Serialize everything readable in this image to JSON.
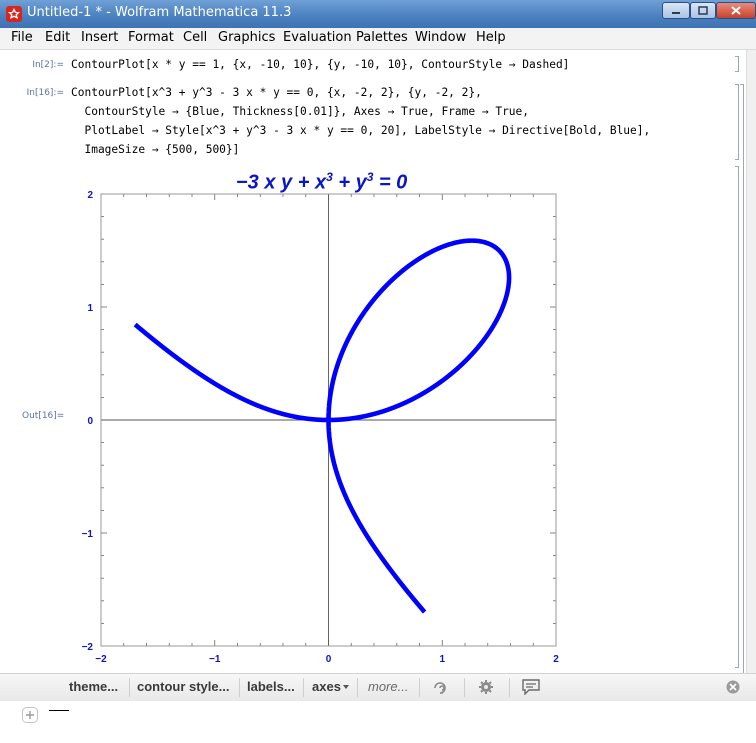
{
  "window": {
    "title": "Untitled-1 * - Wolfram Mathematica 11.3",
    "icon": "mathematica-spikey-icon"
  },
  "menu": [
    "File",
    "Edit",
    "Insert",
    "Format",
    "Cell",
    "Graphics",
    "Evaluation",
    "Palettes",
    "Window",
    "Help"
  ],
  "cells": [
    {
      "label": "In[2]:=",
      "lines": [
        "ContourPlot[x * y == 1, {x, -10, 10}, {y, -10, 10}, ContourStyle → Dashed]"
      ]
    },
    {
      "label": "In[16]:=",
      "lines": [
        "ContourPlot[x^3 + y^3 - 3 x * y == 0, {x, -2, 2}, {y, -2, 2},",
        "  ContourStyle → {Blue, Thickness[0.01]}, Axes → True, Frame → True,",
        "  PlotLabel → Style[x^3 + y^3 - 3 x * y == 0, 20], LabelStyle → Directive[Bold, Blue],",
        "  ImageSize → {500, 500}]"
      ]
    },
    {
      "label": "Out[16]="
    }
  ],
  "plot_title": {
    "a": "−3 ",
    "x1": "x",
    "s1": " ",
    "y1": "y",
    "p1": " + ",
    "x2": "x",
    "e2": "3",
    "p2": " + ",
    "y2": "y",
    "e3": "3",
    "eq": " = 0"
  },
  "chart_data": {
    "type": "line",
    "title": "−3 x y + x³ + y³ = 0",
    "xlim": [
      -2,
      2
    ],
    "ylim": [
      -2,
      2
    ],
    "xticks": [
      "−2",
      "−1",
      "0",
      "1",
      "2"
    ],
    "yticks": [
      "−2",
      "−1",
      "0",
      "1",
      "2"
    ],
    "color": "#0000ff",
    "frame": true,
    "axes": true,
    "curve": "x^3 + y^3 - 3xy = 0"
  },
  "suggestions": {
    "themes": "theme...",
    "contour_style": "contour style...",
    "labels": "labels...",
    "axes": "axes",
    "more": "more..."
  }
}
